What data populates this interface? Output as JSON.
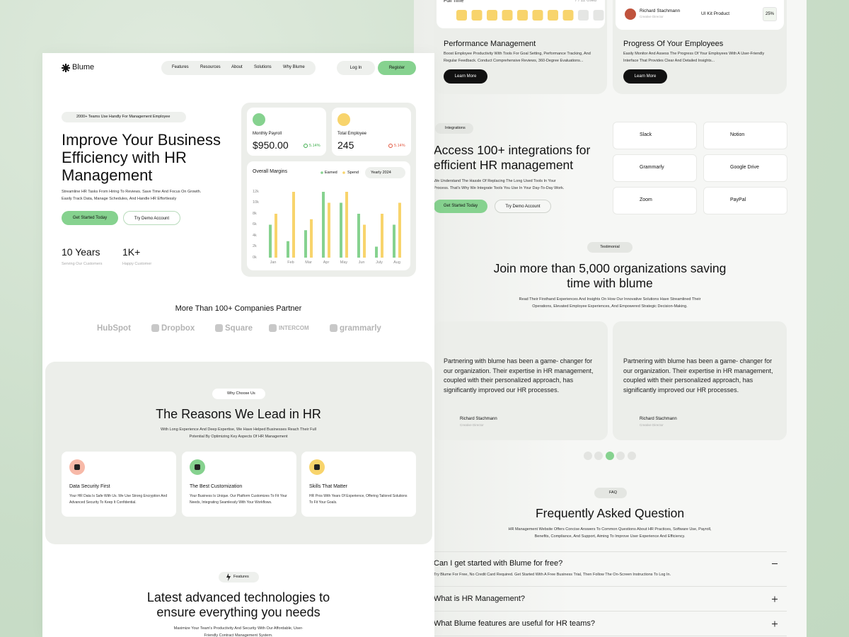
{
  "left": {
    "nav": {
      "logo": "Blume",
      "links": [
        "Features",
        "Resources",
        "About",
        "Solutions",
        "Why Blume"
      ],
      "login": "Log In",
      "register": "Register"
    },
    "hero": {
      "badge": "2000+ Teams Use Handly For Management Employee",
      "title": "Improve Your Business Efficiency with HR Management",
      "text": "Streamline HR Tasks From Hiring To Reviews. Save Time And Focus On Growth. Easily Track Data, Manage Schedules, And Handle HR Effortlessly",
      "primary": "Get Started Today",
      "secondary": "Try Demo Account",
      "stats": [
        {
          "value": "10 Years",
          "label": "Serving Our Customers"
        },
        {
          "value": "1K+",
          "label": "Happy Customer"
        }
      ]
    },
    "dashboard": {
      "payroll": {
        "label": "Monthly Payroll",
        "value": "$950.00",
        "change": "5.14%"
      },
      "employees": {
        "label": "Total Employee",
        "value": "245",
        "change": "5.14%"
      },
      "chart": {
        "type": "bar",
        "title": "Overall Margins",
        "period": "Yearly 2024",
        "categories": [
          "Jan",
          "Feb",
          "Mar",
          "Apr",
          "May",
          "Jun",
          "July",
          "Aug"
        ],
        "series": [
          {
            "name": "Earned",
            "color": "#86d28f",
            "values": [
              6000,
              3000,
              5000,
              12000,
              10000,
              8000,
              2000,
              6000
            ]
          },
          {
            "name": "Spend",
            "color": "#f8d46c",
            "values": [
              8000,
              12000,
              7000,
              10000,
              12000,
              6000,
              8000,
              10000
            ]
          }
        ],
        "ylim": [
          0,
          12000
        ],
        "yticks": [
          {
            "value": 0,
            "label": "0k"
          },
          {
            "value": 2000,
            "label": "2k"
          },
          {
            "value": 4000,
            "label": "4k"
          },
          {
            "value": 6000,
            "label": "6k"
          },
          {
            "value": 8000,
            "label": "8k"
          },
          {
            "value": 10000,
            "label": "10k"
          },
          {
            "value": 12000,
            "label": "12k"
          }
        ]
      }
    },
    "partners": {
      "title": "More Than 100+ Companies Partner",
      "logos": [
        "HubSpot",
        "Dropbox",
        "Square",
        "INTERCOM",
        "grammarly"
      ]
    },
    "reasons": {
      "badge": "Why Choose Us",
      "title": "The Reasons We Lead in HR",
      "text": "With Long Experience And Deep Expertise, We Have Helped Businesses Reach Their Full Potential By Optimizing Key Aspects Of HR Management",
      "cards": [
        {
          "title": "Data Security First",
          "text": "Your HR Data Is Safe With Us. We Use Strong Encryption And Advanced Security To Keep It Confidential."
        },
        {
          "title": "The Best Customization",
          "text": "Your Business Is Unique. Our Platform Customizes To Fit Your Needs, Integrating Seamlessly With Your Workflows."
        },
        {
          "title": "Skills That Matter",
          "text": "HR Pros With Years Of Experience, Offering Tailored Solutions To Fit Your Goals."
        }
      ]
    },
    "features": {
      "badge": "Features",
      "title": "Latest advanced technologies to ensure everything you needs",
      "text": "Maximize Your Team's Productivity And Security With Our Affordable, User-Friendly Contract Management System."
    }
  },
  "right": {
    "top": {
      "tracker": {
        "label": "Full Time",
        "count": "7 / 12 Used"
      },
      "person": {
        "name": "Richard Stachmann",
        "role": "Creative Director",
        "product": "UI Kit Product",
        "percent": "25%"
      },
      "cards": [
        {
          "title": "Performance Management",
          "text": "Boost Employee Productivity With Tools For Goal Setting, Performance Tracking, And Regular Feedback. Conduct Comprehensive Reviews, 360-Degree Evaluations...",
          "button": "Learn More"
        },
        {
          "title": "Progress Of Your Employees",
          "text": "Easily Monitor And Assess The Progress Of Your Employees With A User-Friendly Interface That Provides Clear And Detailed Insights...",
          "button": "Learn More"
        }
      ]
    },
    "integrations": {
      "badge": "Integrations",
      "title": "Access 100+ integrations for efficient HR management",
      "text": "We Understand The Hassle Of Replacing The Long Used Tools In Your Process. That's Why We Integrate Tools You Use In Your Day-To-Day Work.",
      "primary": "Get Started Today",
      "secondary": "Try Demo Account",
      "apps": [
        "Slack",
        "Notion",
        "Grammarly",
        "Google Drive",
        "Zoom",
        "PayPal"
      ]
    },
    "testimonial": {
      "badge": "Testimonial",
      "title": "Join more than 5,000 organizations saving time with blume",
      "text": "Read Their Firsthand Experiences And Insights On How Our Innovative Solutions Have Streamlined Their Operations, Elevated Employee Experiences, And Empowered Strategic Decision-Making.",
      "quotes": [
        {
          "text": "Partnering with blume has been a game- changer for our organization. Their expertise in HR management, coupled with their personalized approach, has significantly improved our HR processes.",
          "name": "Richard Stachmann",
          "role": "Creative Director"
        },
        {
          "text": "Partnering with blume has been a game- changer for our organization. Their expertise in HR management, coupled with their personalized approach, has significantly improved our HR processes.",
          "name": "Richard Stachmann",
          "role": "Creative Director"
        }
      ]
    },
    "faq": {
      "badge": "FAQ",
      "title": "Frequently Asked Question",
      "text": "HR Management Website Offers Concise Answers To Common Questions About HR Practices, Software Use, Payroll, Benefits, Compliance, And Support, Aiming To Improve User Experience And Efficiency.",
      "items": [
        {
          "q": "Can I get started with Blume for free?",
          "a": "Try Blume For Free, No Credit Card Required. Get Started With A Free Business Trial, Then Follow The On-Screen Instructions To Log In."
        },
        {
          "q": "What is HR Management?"
        },
        {
          "q": "What Blume features are useful for HR teams?"
        }
      ]
    }
  }
}
